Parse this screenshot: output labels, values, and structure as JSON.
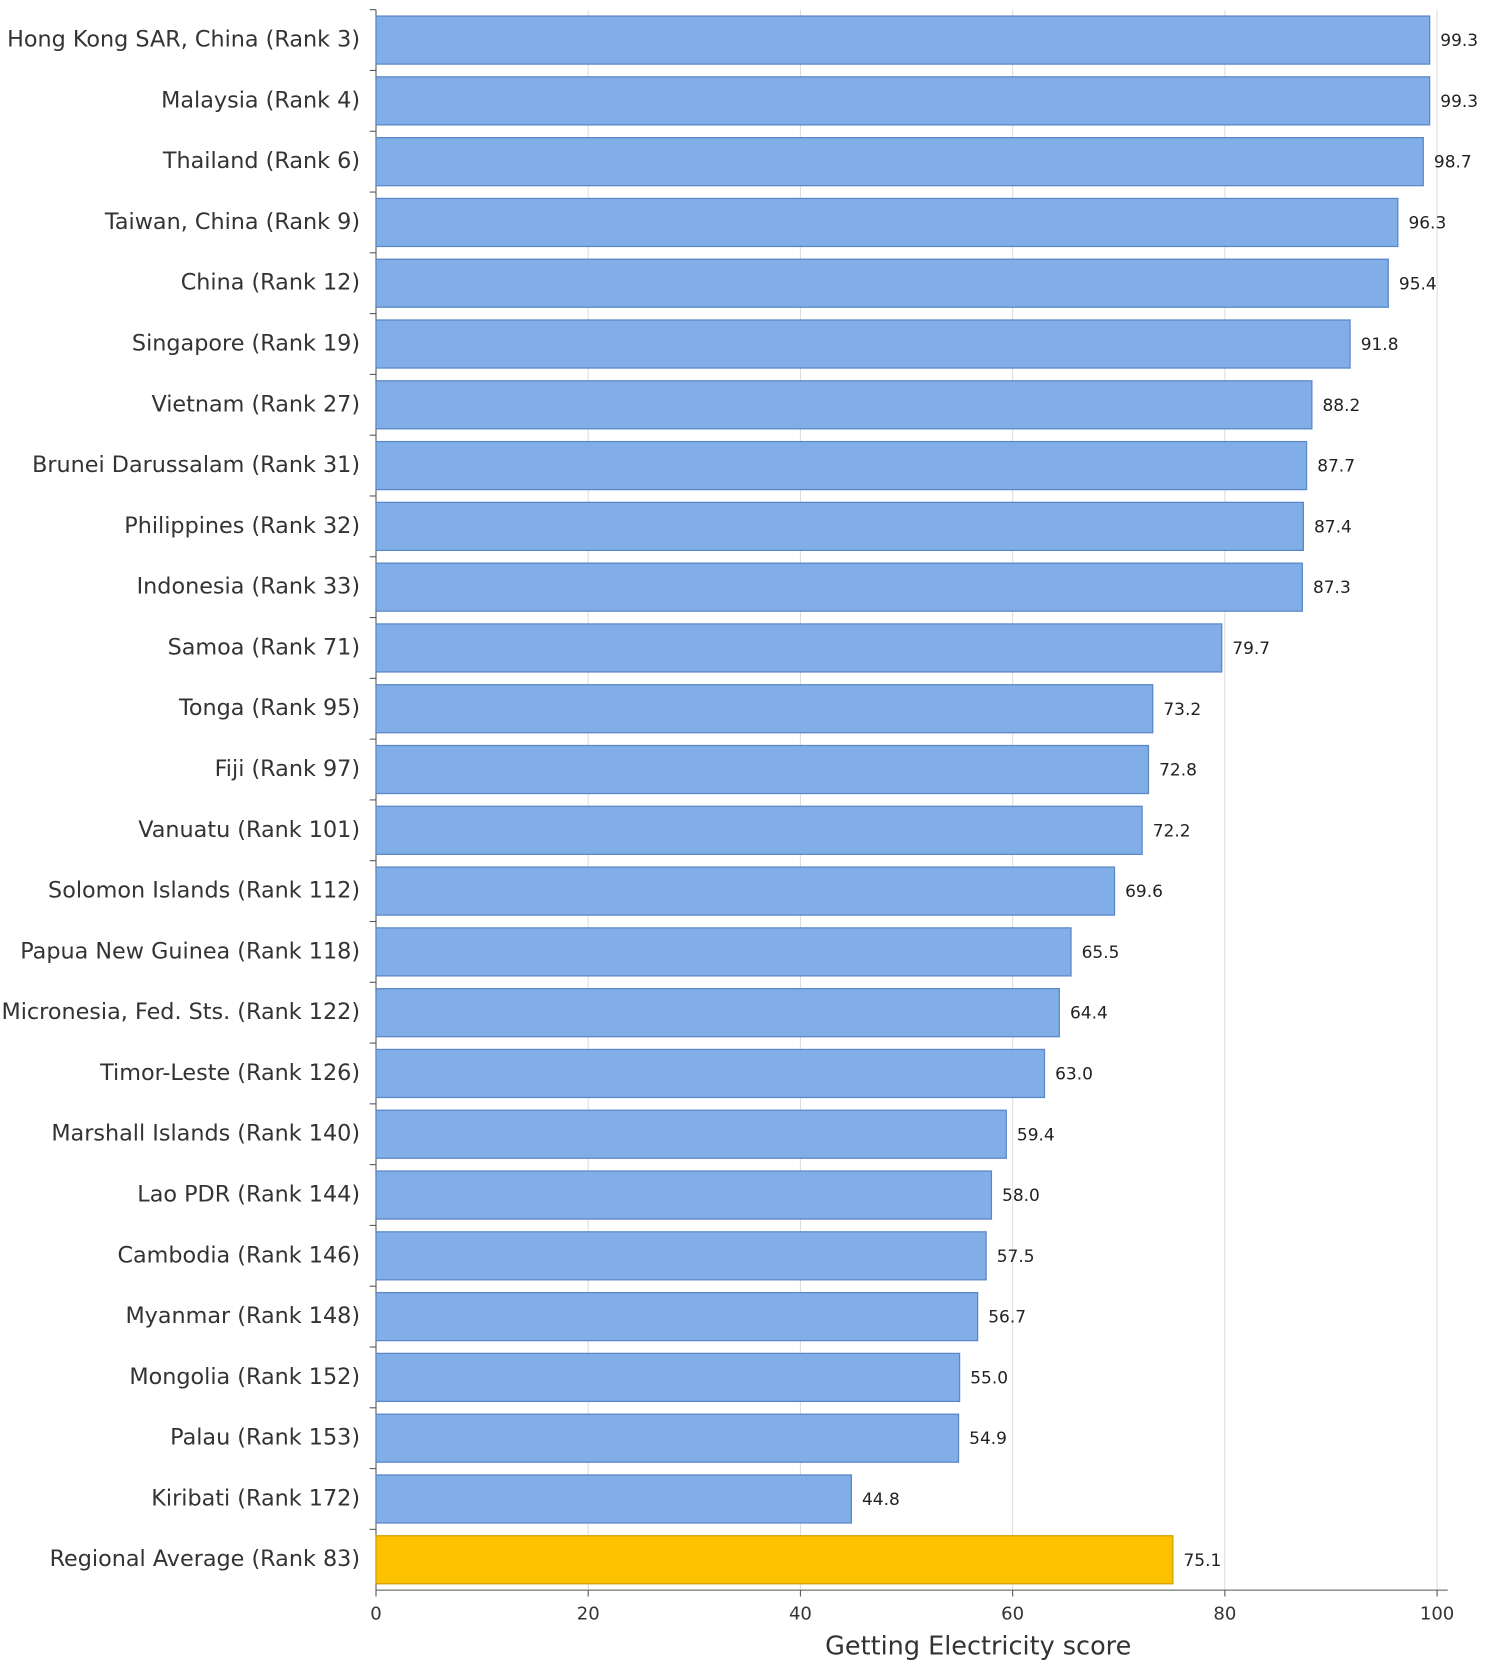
{
  "chart_data": {
    "type": "barh",
    "x_label": "Getting Electricity score",
    "categories": [
      "Hong Kong SAR, China (Rank 3)",
      "Malaysia (Rank 4)",
      "Thailand (Rank 6)",
      "Taiwan, China (Rank 9)",
      "China (Rank 12)",
      "Singapore (Rank 19)",
      "Vietnam (Rank 27)",
      "Brunei Darussalam (Rank 31)",
      "Philippines (Rank 32)",
      "Indonesia (Rank 33)",
      "Samoa (Rank 71)",
      "Tonga (Rank 95)",
      "Fiji (Rank 97)",
      "Vanuatu (Rank 101)",
      "Solomon Islands (Rank 112)",
      "Papua New Guinea (Rank 118)",
      "Micronesia, Fed. Sts. (Rank 122)",
      "Timor-Leste (Rank 126)",
      "Marshall Islands (Rank 140)",
      "Lao PDR (Rank 144)",
      "Cambodia (Rank 146)",
      "Myanmar (Rank 148)",
      "Mongolia (Rank 152)",
      "Palau (Rank 153)",
      "Kiribati (Rank 172)",
      "Regional Average (Rank 83)"
    ],
    "values": [
      99.3,
      99.3,
      98.7,
      96.3,
      95.4,
      91.8,
      88.2,
      87.7,
      87.4,
      87.3,
      79.7,
      73.2,
      72.8,
      72.2,
      69.6,
      65.5,
      64.4,
      63,
      59.4,
      58,
      57.5,
      56.7,
      55,
      54.9,
      44.8,
      75.1
    ],
    "value_labels": [
      "99.3",
      "99.3",
      "98.7",
      "96.3",
      "95.4",
      "91.8",
      "88.2",
      "87.7",
      "87.4",
      "87.3",
      "79.7",
      "73.2",
      "72.8",
      "72.2",
      "69.6",
      "65.5",
      "64.4",
      "63.0",
      "59.4",
      "58.0",
      "57.5",
      "56.7",
      "55.0",
      "54.9",
      "44.8",
      "75.1"
    ],
    "colors": [
      "#82aee8",
      "#82aee8",
      "#82aee8",
      "#82aee8",
      "#82aee8",
      "#82aee8",
      "#82aee8",
      "#82aee8",
      "#82aee8",
      "#82aee8",
      "#82aee8",
      "#82aee8",
      "#82aee8",
      "#82aee8",
      "#82aee8",
      "#82aee8",
      "#82aee8",
      "#82aee8",
      "#82aee8",
      "#82aee8",
      "#82aee8",
      "#82aee8",
      "#82aee8",
      "#82aee8",
      "#82aee8",
      "#fcc200"
    ],
    "xlim": [
      0,
      100
    ],
    "xticks": [
      0,
      20,
      40,
      60,
      80,
      100
    ],
    "grid": true
  }
}
